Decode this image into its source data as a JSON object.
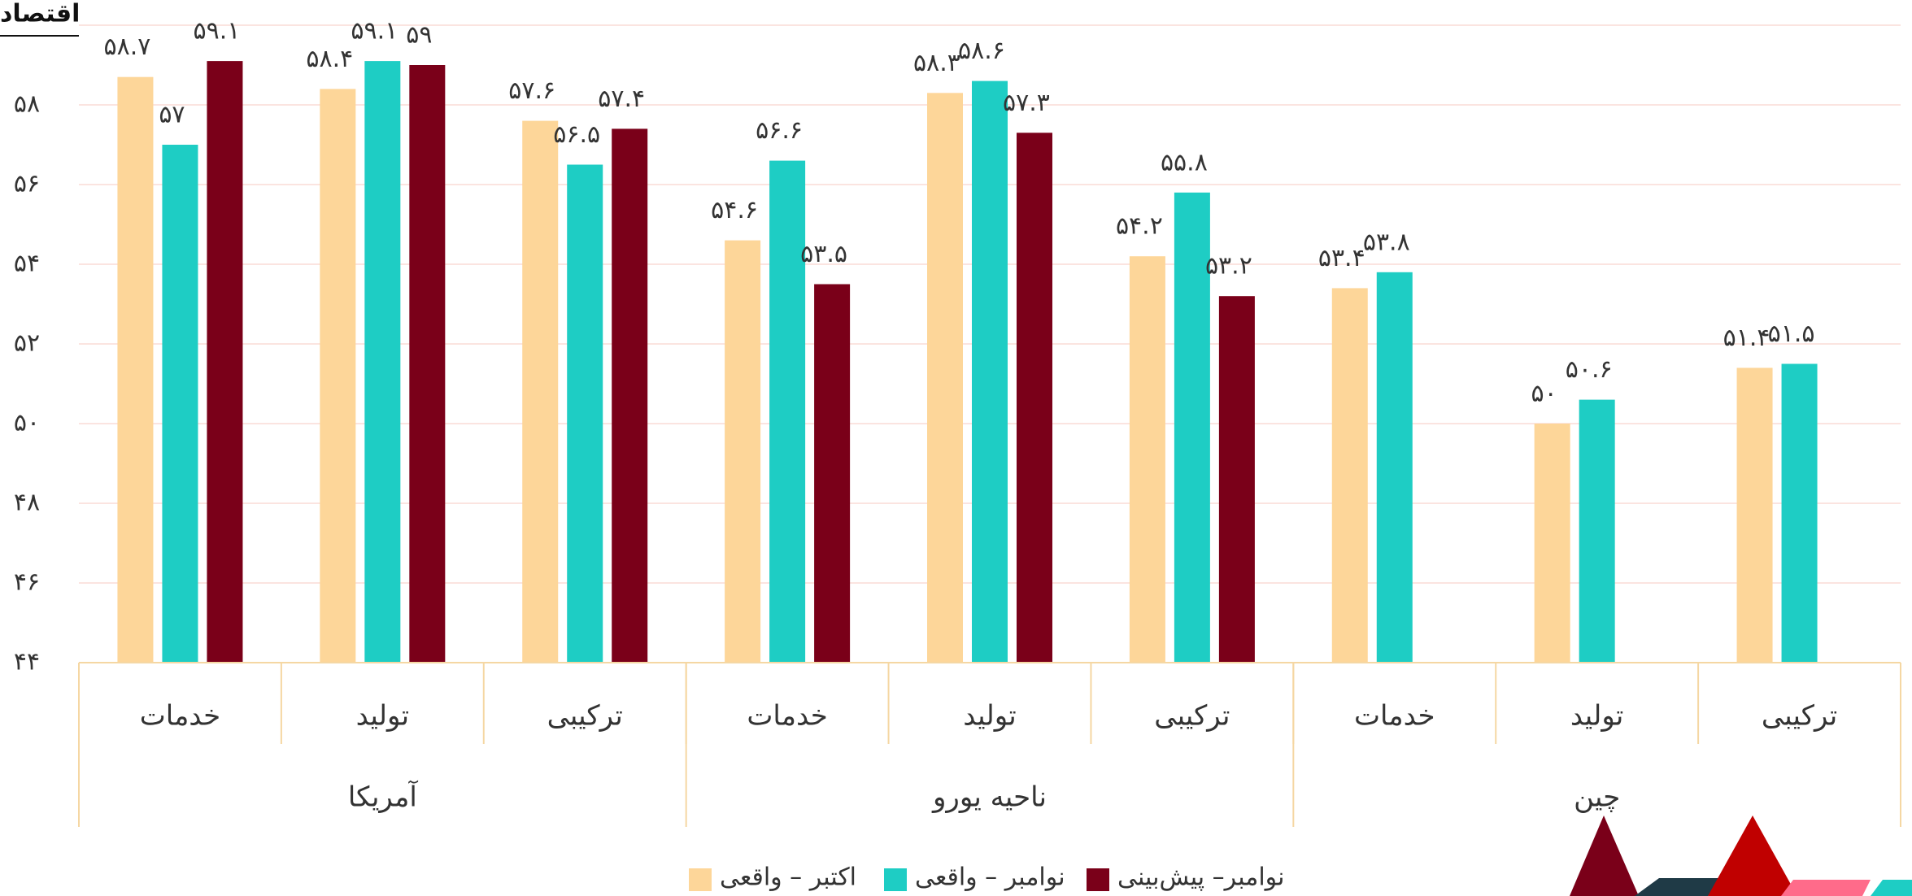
{
  "chart_data": {
    "type": "bar",
    "title": "اقتصاد",
    "categories": [
      "خدمات",
      "تولید",
      "ترکیبی",
      "خدمات",
      "تولید",
      "ترکیبی",
      "خدمات",
      "تولید",
      "ترکیبی"
    ],
    "groups": [
      "آمریکا",
      "ناحیه یورو",
      "چین"
    ],
    "series": [
      {
        "name": "اکتبر – واقعی",
        "color": "#fdd699",
        "values": [
          58.7,
          58.4,
          57.6,
          54.6,
          58.3,
          54.2,
          53.4,
          50,
          51.4
        ],
        "value_labels": [
          "۵۸.۷",
          "۵۸.۴",
          "۵۷.۶",
          "۵۴.۶",
          "۵۸.۳",
          "۵۴.۲",
          "۵۳.۴",
          "۵۰",
          "۵۱.۴"
        ]
      },
      {
        "name": "نوامبر – واقعی",
        "color": "#1ecdc4",
        "values": [
          57,
          59.1,
          56.5,
          56.6,
          58.6,
          55.8,
          53.8,
          50.6,
          51.5
        ],
        "value_labels": [
          "۵۷",
          "۵۹.۱",
          "۵۶.۵",
          "۵۶.۶",
          "۵۸.۶",
          "۵۵.۸",
          "۵۳.۸",
          "۵۰.۶",
          "۵۱.۵"
        ]
      },
      {
        "name": "نوامبر– پیش‌بینی",
        "color": "#7a0019",
        "values": [
          59.1,
          59,
          57.4,
          53.5,
          57.3,
          53.2,
          null,
          null,
          null
        ],
        "value_labels": [
          "۵۹.۱",
          "۵۹",
          "۵۷.۴",
          "۵۳.۵",
          "۵۷.۳",
          "۵۳.۲",
          null,
          null,
          null
        ]
      }
    ],
    "ylim": [
      44,
      60
    ],
    "yticks": [
      {
        "value": 44,
        "label": "۴۴"
      },
      {
        "value": 46,
        "label": "۴۶"
      },
      {
        "value": 48,
        "label": "۴۸"
      },
      {
        "value": 50,
        "label": "۵۰"
      },
      {
        "value": 52,
        "label": "۵۲"
      },
      {
        "value": 54,
        "label": "۵۴"
      },
      {
        "value": 56,
        "label": "۵۶"
      },
      {
        "value": 58,
        "label": "۵۸"
      }
    ],
    "grid": true
  }
}
